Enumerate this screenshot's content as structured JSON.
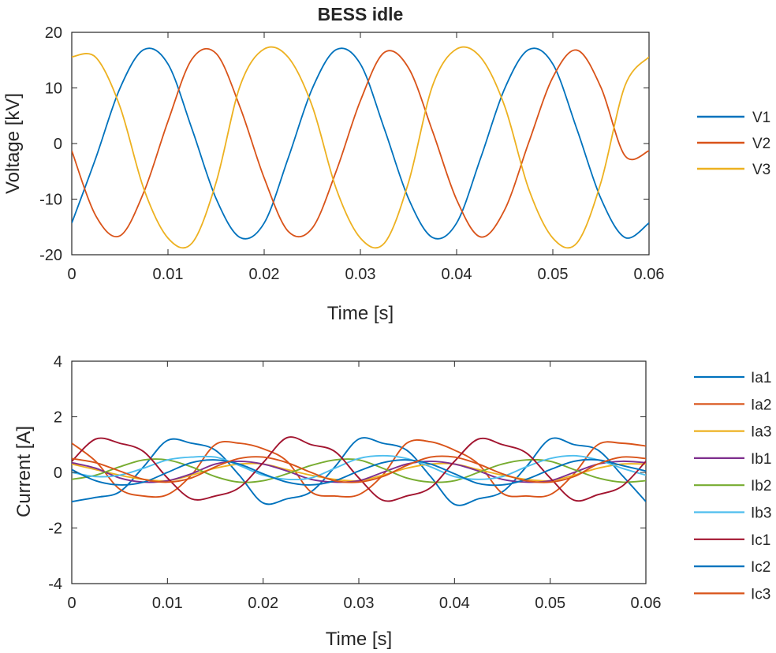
{
  "chart_data": [
    {
      "type": "line",
      "title": "BESS idle",
      "xlabel": "Time [s]",
      "ylabel": "Voltage [kV]",
      "xlim": [
        0,
        0.06
      ],
      "ylim": [
        -20,
        20
      ],
      "xticks": [
        "0",
        "0.01",
        "0.02",
        "0.03",
        "0.04",
        "0.05",
        "0.06"
      ],
      "yticks": [
        "-20",
        "-10",
        "0",
        "10",
        "20"
      ],
      "grid": false,
      "legend_position": "outside-right",
      "x": [
        0,
        0.0025,
        0.005,
        0.0075,
        0.01,
        0.0125,
        0.015,
        0.0175,
        0.02,
        0.0225,
        0.025,
        0.0275,
        0.03,
        0.0325,
        0.035,
        0.0375,
        0.04,
        0.0425,
        0.045,
        0.0475,
        0.05,
        0.0525,
        0.055,
        0.0575,
        0.06
      ],
      "series": [
        {
          "name": "V1",
          "color": "#0072BD",
          "values": [
            -14.3,
            -2.6,
            9.9,
            16.9,
            14.3,
            2.6,
            -9.9,
            -16.9,
            -14.3,
            -2.6,
            9.9,
            16.9,
            14.3,
            2.6,
            -9.9,
            -16.9,
            -14.3,
            -2.6,
            9.9,
            16.9,
            14.3,
            2.6,
            -9.9,
            -16.9,
            -14.3
          ]
        },
        {
          "name": "V2",
          "color": "#D95319",
          "values": [
            -1.3,
            -13.0,
            -16.6,
            -8.7,
            4.0,
            15.2,
            16.2,
            6.5,
            -6.2,
            -15.8,
            -15.2,
            -4.9,
            7.7,
            16.4,
            13.6,
            2.2,
            -10.1,
            -16.8,
            -11.9,
            0.2,
            11.9,
            16.8,
            10.1,
            -2.2,
            -1.3
          ]
        },
        {
          "name": "V3",
          "color": "#EDB120",
          "values": [
            15.6,
            15.5,
            6.7,
            -8.2,
            -17.0,
            -17.9,
            -7.0,
            10.4,
            17.0,
            15.5,
            6.7,
            -8.2,
            -17.0,
            -17.9,
            -7.0,
            10.4,
            17.0,
            15.5,
            6.7,
            -8.2,
            -17.0,
            -17.9,
            -7.0,
            10.4,
            15.6
          ]
        }
      ]
    },
    {
      "type": "line",
      "title": "",
      "xlabel": "Time [s]",
      "ylabel": "Current [A]",
      "xlim": [
        0,
        0.06
      ],
      "ylim": [
        -4,
        4
      ],
      "xticks": [
        "0",
        "0.01",
        "0.02",
        "0.03",
        "0.04",
        "0.05",
        "0.06"
      ],
      "yticks": [
        "-4",
        "-2",
        "0",
        "2",
        "4"
      ],
      "grid": false,
      "legend_position": "outside-right",
      "x": [
        0,
        0.0025,
        0.005,
        0.0075,
        0.01,
        0.0125,
        0.015,
        0.0175,
        0.02,
        0.0225,
        0.025,
        0.0275,
        0.03,
        0.0325,
        0.035,
        0.0375,
        0.04,
        0.0425,
        0.045,
        0.0475,
        0.05,
        0.0525,
        0.055,
        0.0575,
        0.06
      ],
      "series": [
        {
          "name": "Ia1",
          "color": "#0072BD",
          "values": [
            -1.05,
            -0.9,
            -0.7,
            0.2,
            1.15,
            1.05,
            0.8,
            -0.1,
            -1.1,
            -0.95,
            -0.7,
            0.2,
            1.2,
            1.05,
            0.8,
            -0.15,
            -1.15,
            -0.95,
            -0.7,
            0.2,
            1.2,
            1.0,
            0.8,
            -0.1,
            -1.05
          ]
        },
        {
          "name": "Ia2",
          "color": "#D95319",
          "values": [
            1.05,
            0.4,
            -0.6,
            -0.85,
            -0.8,
            -0.1,
            1.0,
            1.05,
            0.85,
            0.4,
            -0.7,
            -0.85,
            -0.8,
            -0.1,
            1.05,
            1.1,
            0.8,
            0.3,
            -0.75,
            -0.85,
            -0.8,
            -0.05,
            1.0,
            1.05,
            0.95
          ]
        },
        {
          "name": "Ia3",
          "color": "#EDB120",
          "values": [
            0.3,
            0.1,
            -0.1,
            -0.25,
            -0.3,
            -0.1,
            0.15,
            0.3,
            0.3,
            0.1,
            -0.1,
            -0.25,
            -0.3,
            -0.1,
            0.15,
            0.3,
            0.3,
            0.1,
            -0.1,
            -0.25,
            -0.3,
            -0.1,
            0.15,
            0.3,
            0.3
          ]
        },
        {
          "name": "Ib1",
          "color": "#7E2F8E",
          "values": [
            0.35,
            0.15,
            -0.2,
            -0.35,
            -0.3,
            -0.05,
            0.3,
            0.4,
            0.3,
            0.05,
            -0.25,
            -0.35,
            -0.3,
            0.0,
            0.3,
            0.4,
            0.3,
            0.05,
            -0.25,
            -0.35,
            -0.3,
            0.0,
            0.3,
            0.4,
            0.35
          ]
        },
        {
          "name": "Ib2",
          "color": "#77AC30",
          "values": [
            -0.25,
            -0.1,
            0.2,
            0.45,
            0.45,
            0.2,
            -0.15,
            -0.35,
            -0.3,
            -0.05,
            0.25,
            0.45,
            0.45,
            0.15,
            -0.2,
            -0.35,
            -0.3,
            0.0,
            0.3,
            0.45,
            0.4,
            0.1,
            -0.2,
            -0.35,
            -0.3
          ]
        },
        {
          "name": "Ib3",
          "color": "#4DBEEE",
          "values": [
            0.0,
            -0.15,
            -0.1,
            0.15,
            0.45,
            0.55,
            0.55,
            0.25,
            -0.1,
            -0.25,
            -0.2,
            0.15,
            0.5,
            0.6,
            0.5,
            0.2,
            -0.15,
            -0.25,
            -0.15,
            0.2,
            0.5,
            0.6,
            0.45,
            0.15,
            -0.1
          ]
        },
        {
          "name": "Ic1",
          "color": "#A2142F",
          "values": [
            0.4,
            1.2,
            1.05,
            0.75,
            -0.2,
            -0.95,
            -0.85,
            -0.55,
            0.35,
            1.25,
            1.0,
            0.75,
            -0.2,
            -1.0,
            -0.85,
            -0.55,
            0.4,
            1.2,
            1.0,
            0.7,
            -0.2,
            -1.0,
            -0.8,
            -0.5,
            0.4
          ]
        },
        {
          "name": "Ic2",
          "color": "#0072BD",
          "values": [
            0.1,
            -0.3,
            -0.45,
            -0.35,
            0.0,
            0.35,
            0.45,
            0.3,
            -0.05,
            -0.35,
            -0.45,
            -0.3,
            0.05,
            0.35,
            0.45,
            0.3,
            -0.05,
            -0.4,
            -0.45,
            -0.25,
            0.1,
            0.4,
            0.45,
            0.25,
            0.05
          ]
        },
        {
          "name": "Ic3",
          "color": "#D95319",
          "values": [
            0.5,
            0.35,
            0.05,
            -0.25,
            -0.35,
            -0.2,
            0.2,
            0.5,
            0.55,
            0.35,
            0.0,
            -0.3,
            -0.35,
            -0.15,
            0.25,
            0.55,
            0.55,
            0.3,
            -0.05,
            -0.3,
            -0.35,
            -0.15,
            0.3,
            0.55,
            0.5
          ]
        }
      ]
    }
  ]
}
